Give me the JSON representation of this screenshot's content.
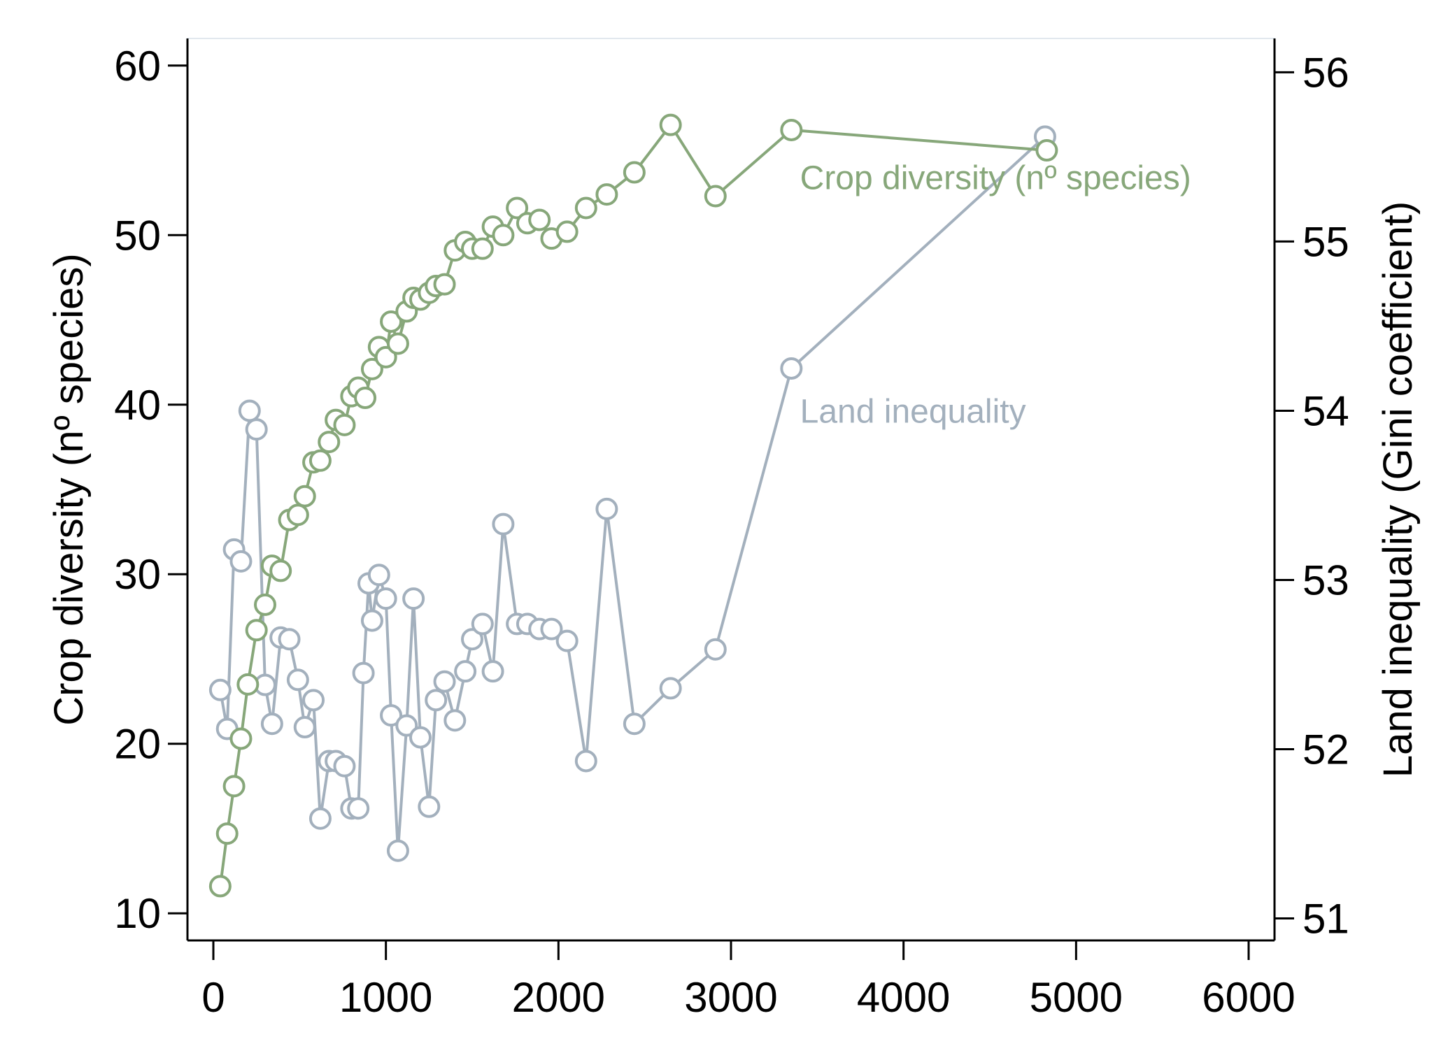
{
  "chart_data": {
    "type": "line",
    "title": "",
    "xlabel": "",
    "ylabel_left": "Crop diversity (nº species)",
    "ylabel_right": "Land inequality (Gini coefficient)",
    "xlim": [
      -150,
      6150
    ],
    "ylim_left": [
      8.4,
      61.6
    ],
    "ylim_right": [
      50.87,
      56.2
    ],
    "xticks": [
      0,
      1000,
      2000,
      3000,
      4000,
      5000,
      6000
    ],
    "yticks_left": [
      10,
      20,
      30,
      40,
      50,
      60
    ],
    "yticks_right": [
      51,
      52,
      53,
      54,
      55,
      56
    ],
    "grid": false,
    "series": [
      {
        "name": "Crop diversity (nº species)",
        "axis": "left",
        "color": "#87a77a",
        "x": [
          40,
          80,
          120,
          160,
          200,
          250,
          300,
          340,
          390,
          440,
          490,
          530,
          580,
          620,
          670,
          710,
          760,
          800,
          840,
          880,
          920,
          960,
          1000,
          1030,
          1070,
          1120,
          1160,
          1200,
          1250,
          1290,
          1340,
          1400,
          1460,
          1500,
          1560,
          1620,
          1680,
          1760,
          1820,
          1890,
          1960,
          2050,
          2160,
          2280,
          2440,
          2650,
          2910,
          3350,
          4830
        ],
        "y": [
          11.6,
          14.7,
          17.5,
          20.3,
          23.5,
          26.7,
          28.2,
          30.5,
          30.2,
          33.2,
          33.5,
          34.6,
          36.6,
          36.7,
          37.8,
          39.1,
          38.8,
          40.5,
          41.0,
          40.4,
          42.1,
          43.4,
          42.8,
          44.9,
          43.6,
          45.5,
          46.3,
          46.2,
          46.6,
          47.0,
          47.1,
          49.1,
          49.6,
          49.2,
          49.2,
          50.5,
          50.0,
          51.6,
          50.7,
          50.9,
          49.8,
          50.2,
          51.6,
          52.4,
          53.7,
          56.5,
          52.3,
          56.2,
          55.0
        ]
      },
      {
        "name": "Land inequality",
        "axis": "right",
        "color": "#a3b0bd",
        "x": [
          40,
          80,
          120,
          160,
          210,
          250,
          300,
          340,
          390,
          440,
          490,
          530,
          580,
          620,
          670,
          710,
          760,
          800,
          840,
          870,
          900,
          920,
          960,
          1000,
          1030,
          1070,
          1120,
          1160,
          1200,
          1250,
          1290,
          1340,
          1400,
          1460,
          1500,
          1560,
          1620,
          1680,
          1760,
          1820,
          1890,
          1960,
          2050,
          2160,
          2280,
          2440,
          2650,
          2910,
          3350,
          4820
        ],
        "y": [
          52.35,
          52.12,
          53.18,
          53.11,
          54.0,
          53.89,
          52.38,
          52.15,
          52.66,
          52.65,
          52.41,
          52.13,
          52.29,
          51.59,
          51.93,
          51.93,
          51.9,
          51.65,
          51.65,
          52.45,
          52.98,
          52.76,
          53.03,
          52.89,
          52.2,
          51.4,
          52.14,
          52.89,
          52.07,
          51.66,
          52.29,
          52.4,
          52.17,
          52.46,
          52.65,
          52.74,
          52.46,
          53.33,
          52.74,
          52.74,
          52.71,
          52.71,
          52.64,
          51.93,
          53.42,
          52.15,
          52.36,
          52.59,
          54.25,
          55.62
        ]
      }
    ],
    "annotations": [
      {
        "series": "Crop diversity (nº species)",
        "text": "Crop diversity (nº species)",
        "x": 3400,
        "y_right": 55.38
      },
      {
        "series": "Land inequality",
        "text": "Land inequality",
        "x": 3400,
        "y_right": 54.0
      }
    ]
  }
}
